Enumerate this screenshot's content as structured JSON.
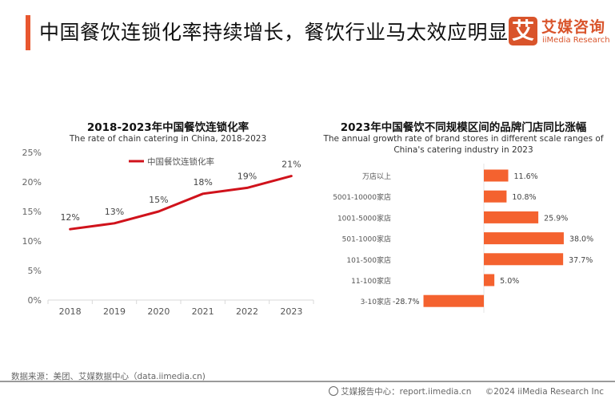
{
  "header": {
    "title": "中国餐饮连锁化率持续增长，餐饮行业马太效应明显",
    "logo": {
      "mark": "艾",
      "name_cn": "艾媒咨询",
      "name_en": "iiMedia Research"
    },
    "accent_color": "#e8572f"
  },
  "chart_data": [
    {
      "type": "line",
      "title": "2018-2023年中国餐饮连锁化率",
      "subtitle": "The rate of chain catering in China, 2018-2023",
      "x": [
        "2018",
        "2019",
        "2020",
        "2021",
        "2022",
        "2023"
      ],
      "series": [
        {
          "name": "中国餐饮连锁化率",
          "values": [
            12,
            13,
            15,
            18,
            19,
            21
          ],
          "color": "#d0121b",
          "data_labels": [
            "12%",
            "13%",
            "15%",
            "18%",
            "19%",
            "21%"
          ]
        }
      ],
      "xlabel": "",
      "ylabel": "",
      "ylim": [
        0,
        25
      ],
      "yticks": [
        0,
        5,
        10,
        15,
        20,
        25
      ],
      "ytick_labels": [
        "0%",
        "5%",
        "10%",
        "15%",
        "20%",
        "25%"
      ],
      "grid": false,
      "legend": "top-center"
    },
    {
      "type": "bar",
      "orientation": "horizontal",
      "title": "2023年中国餐饮不同规模区间的品牌门店同比涨幅",
      "subtitle_lines": [
        "The annual growth rate of brand stores in different scale ranges of",
        "China's catering industry in 2023"
      ],
      "categories": [
        "万店以上",
        "5001-10000家店",
        "1001-5000家店",
        "501-1000家店",
        "101-500家店",
        "11-100家店",
        "3-10家店"
      ],
      "values": [
        11.6,
        10.8,
        25.9,
        38.0,
        37.7,
        5.0,
        -28.7
      ],
      "data_labels": [
        "11.6%",
        "10.8%",
        "25.9%",
        "38.0%",
        "37.7%",
        "5.0%",
        "-28.7%"
      ],
      "color": "#f4622f",
      "xlim": [
        -30,
        40
      ],
      "grid": false
    }
  ],
  "footer": {
    "source": "数据来源：美团、艾媒数据中心（data.iimedia.cn)",
    "report_center": "艾媒报告中心：report.iimedia.cn",
    "copyright": "©2024  iiMedia Research  Inc"
  }
}
